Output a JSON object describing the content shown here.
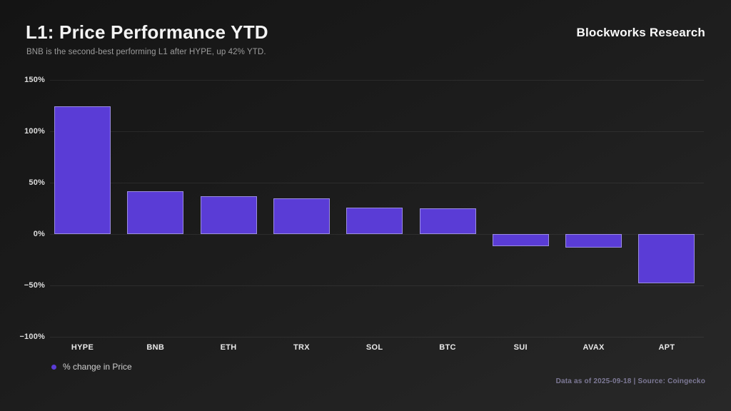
{
  "header": {
    "title": "L1: Price Performance YTD",
    "subtitle": "BNB is the second-best performing L1 after HYPE, up 42% YTD.",
    "brand": "Blockworks Research"
  },
  "chart_data": {
    "type": "bar",
    "categories": [
      "HYPE",
      "BNB",
      "ETH",
      "TRX",
      "SOL",
      "BTC",
      "SUI",
      "AVAX",
      "APT"
    ],
    "values": [
      124,
      42,
      37,
      35,
      26,
      25,
      -12,
      -13,
      -48
    ],
    "title": "L1: Price Performance YTD",
    "xlabel": "",
    "ylabel": "% change in Price",
    "ylim": [
      -100,
      150
    ],
    "yticks": [
      150,
      100,
      50,
      0,
      -50,
      -100
    ],
    "ytick_labels": [
      "150%",
      "100%",
      "50%",
      "0%",
      "−50%",
      "−100%"
    ],
    "grid": true,
    "legend_position": "bottom-left",
    "bar_color": "#5A3CD6"
  },
  "legend": {
    "label": "% change in Price"
  },
  "footer": {
    "note": "Data as of 2025-09-18 | Source: Coingecko"
  },
  "colors": {
    "accent_purple": "#5A3CD6",
    "background_top": "#141414",
    "background_bottom": "#282828",
    "footer_text": "#7d7996",
    "grid": "#2e2e2e"
  }
}
